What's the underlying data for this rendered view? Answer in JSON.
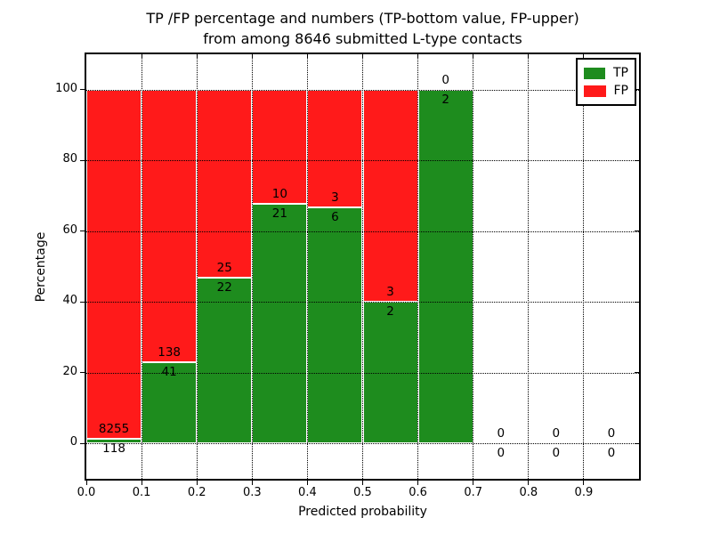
{
  "chart_data": {
    "type": "bar",
    "stacked": true,
    "title_lines": [
      "TP /FP percentage and numbers (TP-bottom value, FP-upper)",
      "from among 8646 submitted L-type contacts"
    ],
    "xlabel": "Predicted probability",
    "ylabel": "Percentage",
    "xlim": [
      0.0,
      1.0
    ],
    "ylim": [
      -10,
      110
    ],
    "bin_width": 0.1,
    "bin_starts": [
      0.0,
      0.1,
      0.2,
      0.3,
      0.4,
      0.5,
      0.6,
      0.7,
      0.8,
      0.9
    ],
    "xticks": [
      "0.0",
      "0.1",
      "0.2",
      "0.3",
      "0.4",
      "0.5",
      "0.6",
      "0.7",
      "0.8",
      "0.9"
    ],
    "yticks": [
      0,
      20,
      40,
      60,
      80,
      100
    ],
    "grid": true,
    "series": [
      {
        "name": "TP",
        "color": "#1e8c1e",
        "counts": [
          118,
          41,
          22,
          21,
          6,
          2,
          2,
          0,
          0,
          0
        ]
      },
      {
        "name": "FP",
        "color": "#ff1a1a",
        "counts": [
          8255,
          138,
          25,
          10,
          3,
          3,
          0,
          0,
          0,
          0
        ]
      }
    ],
    "tp_percent": [
      1.41,
      22.91,
      46.81,
      67.74,
      66.67,
      40.0,
      100.0,
      0,
      0,
      0
    ],
    "legend": {
      "position": "upper right",
      "entries": [
        {
          "label": "TP",
          "color": "#1e8c1e"
        },
        {
          "label": "FP",
          "color": "#ff1a1a"
        }
      ]
    }
  }
}
